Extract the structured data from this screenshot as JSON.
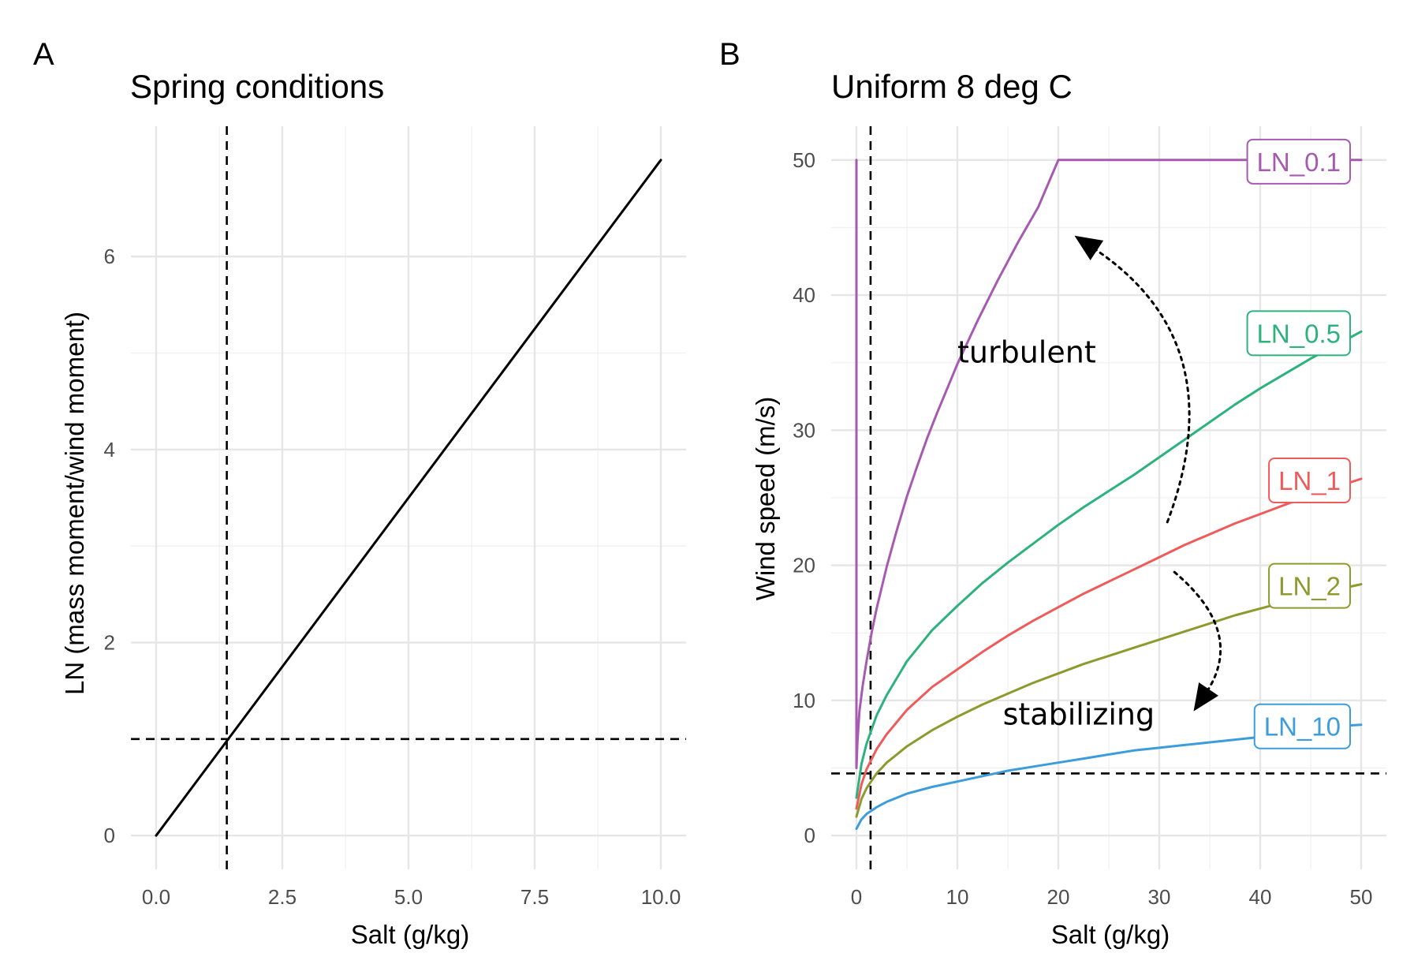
{
  "figure": {
    "panels": [
      {
        "letter": "A"
      },
      {
        "letter": "B"
      }
    ]
  },
  "chart_data": [
    {
      "type": "line",
      "title": "Spring conditions",
      "xlabel": "Salt (g/kg)",
      "ylabel": "LN (mass moment/wind moment)",
      "xlim": [
        -0.5,
        10.5
      ],
      "ylim": [
        -0.35,
        7.35
      ],
      "x_ticks": [
        0,
        2.5,
        5,
        7.5,
        10
      ],
      "x_tick_labels": [
        "0.0",
        "2.5",
        "5.0",
        "7.5",
        "10.0"
      ],
      "y_ticks": [
        0,
        2,
        4,
        6
      ],
      "y_tick_labels": [
        "0",
        "2",
        "4",
        "6"
      ],
      "grid": true,
      "series": [
        {
          "color": "#000000",
          "x": [
            0,
            10
          ],
          "y": [
            0,
            7.0
          ]
        }
      ],
      "reference_lines": [
        {
          "orientation": "vertical",
          "value": 1.4
        },
        {
          "orientation": "horizontal",
          "value": 1.0
        }
      ]
    },
    {
      "type": "line",
      "title": "Uniform 8 deg C",
      "xlabel": "Salt (g/kg)",
      "ylabel": "Wind speed (m/s)",
      "xlim": [
        -2.5,
        52.5
      ],
      "ylim": [
        -2.5,
        52.5
      ],
      "x_ticks": [
        0,
        10,
        20,
        30,
        40,
        50
      ],
      "x_tick_labels": [
        "0",
        "10",
        "20",
        "30",
        "40",
        "50"
      ],
      "y_ticks": [
        0,
        10,
        20,
        30,
        40,
        50
      ],
      "y_tick_labels": [
        "0",
        "10",
        "20",
        "30",
        "40",
        "50"
      ],
      "grid": true,
      "legend": "direct labels at right end of each line",
      "series": [
        {
          "name": "LN_0.1",
          "color": "#a65ab0",
          "x": [
            0,
            0,
            0.1,
            0.3,
            0.6,
            1,
            1.5,
            2,
            3,
            4,
            5,
            6,
            7,
            8,
            9,
            10,
            11,
            12,
            13,
            14,
            15,
            16,
            17,
            18,
            20,
            25,
            30,
            35,
            40,
            45,
            50
          ],
          "y": [
            50,
            5.0,
            7.0,
            9.2,
            11.0,
            12.9,
            15.0,
            16.8,
            19.9,
            22.6,
            25.1,
            27.3,
            29.4,
            31.3,
            33.1,
            34.9,
            36.5,
            38.1,
            39.6,
            41.1,
            42.5,
            43.9,
            45.2,
            46.5,
            50.0,
            50.0,
            50.0,
            50.0,
            50.0,
            50.0,
            50.0
          ]
        },
        {
          "name": "LN_0.5",
          "color": "#2db27d",
          "x": [
            0,
            0.5,
            1,
            2,
            3,
            5,
            7.5,
            10,
            12.5,
            15,
            17.5,
            20,
            22.5,
            25,
            27.5,
            30,
            32.5,
            35,
            37.5,
            40,
            42.5,
            45,
            47.5,
            50
          ],
          "y": [
            2.8,
            5.3,
            6.8,
            8.9,
            10.4,
            12.9,
            15.2,
            17.0,
            18.7,
            20.2,
            21.6,
            23.0,
            24.3,
            25.5,
            26.7,
            28.0,
            29.3,
            30.6,
            31.9,
            33.1,
            34.2,
            35.3,
            36.3,
            37.3
          ]
        },
        {
          "name": "LN_1",
          "color": "#ef5b5b",
          "x": [
            0,
            0.5,
            1,
            2,
            3,
            5,
            7.5,
            10,
            12.5,
            15,
            17.5,
            20,
            22.5,
            25,
            27.5,
            30,
            32.5,
            35,
            37.5,
            40,
            42.5,
            45,
            47.5,
            50
          ],
          "y": [
            2.0,
            3.8,
            4.9,
            6.4,
            7.5,
            9.3,
            11.0,
            12.3,
            13.6,
            14.8,
            15.9,
            16.9,
            17.9,
            18.8,
            19.7,
            20.6,
            21.5,
            22.3,
            23.1,
            23.8,
            24.5,
            25.2,
            25.8,
            26.4
          ]
        },
        {
          "name": "LN_2",
          "color": "#8c9a2e",
          "x": [
            0,
            0.5,
            1,
            2,
            3,
            5,
            7.5,
            10,
            12.5,
            15,
            17.5,
            20,
            22.5,
            25,
            27.5,
            30,
            32.5,
            35,
            37.5,
            40,
            42.5,
            45,
            47.5,
            50
          ],
          "y": [
            1.4,
            2.7,
            3.5,
            4.6,
            5.4,
            6.6,
            7.8,
            8.8,
            9.7,
            10.5,
            11.3,
            12.0,
            12.7,
            13.3,
            13.9,
            14.5,
            15.1,
            15.7,
            16.3,
            16.8,
            17.3,
            17.8,
            18.2,
            18.6
          ]
        },
        {
          "name": "LN_10",
          "color": "#3d9ddb",
          "x": [
            0,
            0.5,
            1,
            2,
            3,
            5,
            7.5,
            10,
            12.5,
            15,
            17.5,
            20,
            22.5,
            25,
            27.5,
            30,
            32.5,
            35,
            37.5,
            40,
            42.5,
            45,
            47.5,
            50
          ],
          "y": [
            0.5,
            1.2,
            1.6,
            2.1,
            2.5,
            3.1,
            3.6,
            4.0,
            4.4,
            4.8,
            5.1,
            5.4,
            5.7,
            6.0,
            6.3,
            6.5,
            6.7,
            6.9,
            7.1,
            7.3,
            7.6,
            7.9,
            8.1,
            8.2
          ]
        }
      ],
      "reference_lines": [
        {
          "orientation": "vertical",
          "value": 1.4
        },
        {
          "orientation": "horizontal",
          "value": 4.6
        }
      ],
      "annotations": [
        {
          "text": "turbulent",
          "x": 10,
          "y": 35
        },
        {
          "text": "stabilizing",
          "x": 14.5,
          "y": 8.2
        }
      ],
      "arrows": [
        {
          "from": [
            30.8,
            23.2
          ],
          "to": [
            21.6,
            44.4
          ],
          "style": "dotted",
          "curve": 0.4
        },
        {
          "from": [
            31.5,
            19.5
          ],
          "to": [
            33.4,
            9.2
          ],
          "style": "dotted",
          "curve": -0.45
        }
      ]
    }
  ]
}
